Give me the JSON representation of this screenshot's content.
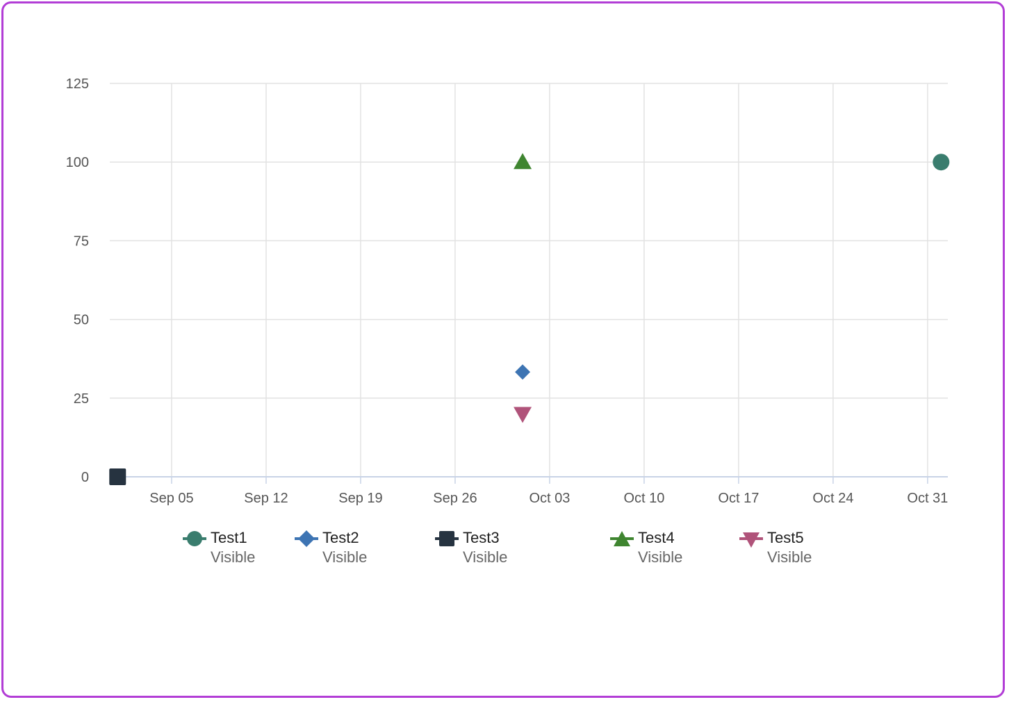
{
  "chart_data": {
    "type": "scatter",
    "title": "",
    "xlabel": "",
    "ylabel": "",
    "ylim": [
      0,
      125
    ],
    "yticks": [
      0,
      25,
      50,
      75,
      100,
      125
    ],
    "xlim": [
      "08-31",
      "11-02"
    ],
    "xticks": [
      {
        "date": "09-05",
        "label": "Sep 05"
      },
      {
        "date": "09-12",
        "label": "Sep 12"
      },
      {
        "date": "09-19",
        "label": "Sep 19"
      },
      {
        "date": "09-26",
        "label": "Sep 26"
      },
      {
        "date": "10-03",
        "label": "Oct 03"
      },
      {
        "date": "10-10",
        "label": "Oct 10"
      },
      {
        "date": "10-17",
        "label": "Oct 17"
      },
      {
        "date": "10-24",
        "label": "Oct 24"
      },
      {
        "date": "10-31",
        "label": "Oct 31"
      }
    ],
    "grid": true,
    "legend_position": "bottom",
    "series": [
      {
        "name": "Test1",
        "status": "Visible",
        "marker": "circle",
        "color": "#3a7d6e",
        "points": [
          {
            "x": "11-01",
            "y": 100
          }
        ]
      },
      {
        "name": "Test2",
        "status": "Visible",
        "marker": "diamond",
        "color": "#3d74b3",
        "points": [
          {
            "x": "10-01",
            "y": 33.3
          }
        ]
      },
      {
        "name": "Test3",
        "status": "Visible",
        "marker": "square",
        "color": "#263340",
        "points": [
          {
            "x": "09-01",
            "y": 0
          }
        ]
      },
      {
        "name": "Test4",
        "status": "Visible",
        "marker": "triangle-up",
        "color": "#3f8530",
        "points": [
          {
            "x": "10-01",
            "y": 100
          }
        ]
      },
      {
        "name": "Test5",
        "status": "Visible",
        "marker": "triangle-down",
        "color": "#b0537a",
        "points": [
          {
            "x": "10-01",
            "y": 20
          }
        ]
      }
    ]
  }
}
